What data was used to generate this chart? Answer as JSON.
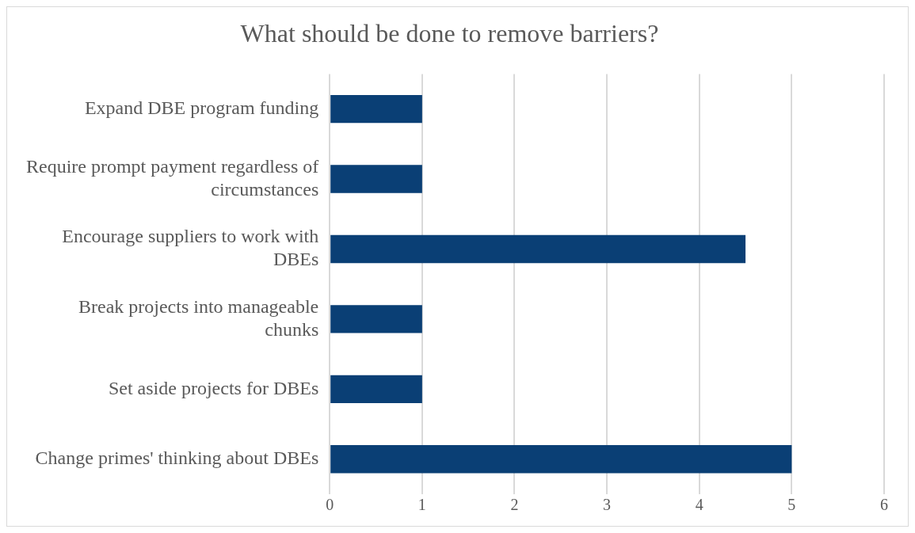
{
  "chart_data": {
    "type": "bar",
    "orientation": "horizontal",
    "title": "What should be done to remove barriers?",
    "categories": [
      "Expand DBE program funding",
      "Require prompt payment regardless of circumstances",
      "Encourage suppliers to work with DBEs",
      "Break projects into manageable chunks",
      "Set aside projects for DBEs",
      "Change primes' thinking about DBEs"
    ],
    "values": [
      1,
      1,
      4.5,
      1,
      1,
      5
    ],
    "color": "#0a3f75",
    "xlim": [
      0,
      6
    ],
    "xticks": [
      0,
      1,
      2,
      3,
      4,
      5,
      6
    ],
    "grid": "x",
    "legend": false
  }
}
